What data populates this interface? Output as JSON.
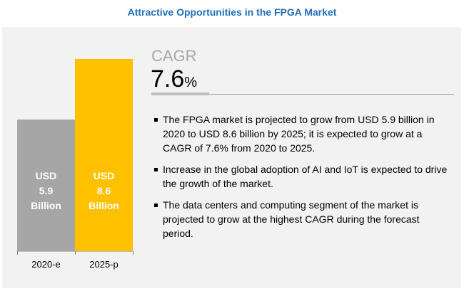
{
  "title": "Attractive Opportunities in the FPGA Market",
  "cagr": {
    "label": "CAGR",
    "value": "7.6",
    "unit": "%"
  },
  "bullets": [
    "The FPGA market is projected to grow from USD 5.9 billion in 2020 to USD 8.6 billion by 2025; it is expected to grow at a CAGR of 7.6% from 2020 to 2025.",
    "Increase in the global adoption of AI and IoT is expected to drive the growth of the market.",
    "The data centers and computing segment of the market is projected to grow at the highest CAGR during the forecast period."
  ],
  "chart_data": {
    "type": "bar",
    "categories": [
      "2020-e",
      "2025-p"
    ],
    "values": [
      5.9,
      8.6
    ],
    "labels": [
      [
        "USD",
        "5.9",
        "Billion"
      ],
      [
        "USD",
        "8.6",
        "Billion"
      ]
    ],
    "colors": [
      "#a6a6a6",
      "#ffc000"
    ],
    "ylim": [
      0,
      8.6
    ]
  }
}
